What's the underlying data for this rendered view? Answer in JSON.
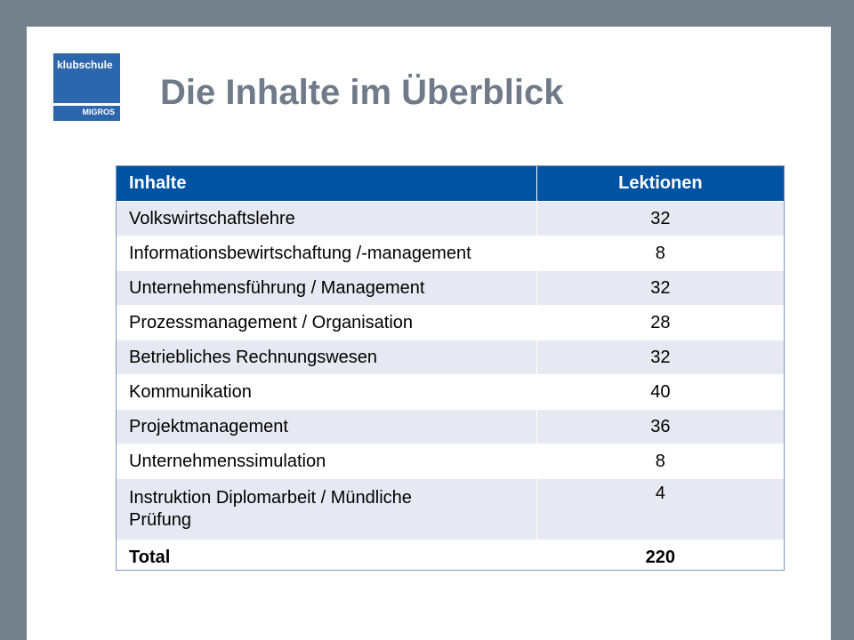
{
  "slide": {
    "title": "Die Inhalte im Überblick",
    "logo": {
      "brand": "klubschule",
      "sub": "MIGROS"
    },
    "colors": {
      "frame": "#74808c",
      "title": "#6f7b88",
      "header": "#0052a3",
      "row_alt": "#e6e9f2",
      "logo": "#2c66ad"
    }
  },
  "table": {
    "headers": [
      "Inhalte",
      "Lektionen"
    ],
    "rows": [
      {
        "content": "Volkswirtschaftslehre",
        "lessons": "32"
      },
      {
        "content": "Informationsbewirtschaftung /-management",
        "lessons": "8"
      },
      {
        "content": "Unternehmensführung / Management",
        "lessons": "32"
      },
      {
        "content": "Prozessmanagement / Organisation",
        "lessons": "28"
      },
      {
        "content": "Betriebliches Rechnungswesen",
        "lessons": "32"
      },
      {
        "content": "Kommunikation",
        "lessons": "40"
      },
      {
        "content": "Projektmanagement",
        "lessons": "36"
      },
      {
        "content": "Unternehmenssimulation",
        "lessons": "8"
      },
      {
        "content": "Instruktion Diplomarbeit / Mündliche Prüfung",
        "lessons": "4"
      }
    ],
    "total": {
      "label": "Total",
      "lessons": "220"
    }
  }
}
